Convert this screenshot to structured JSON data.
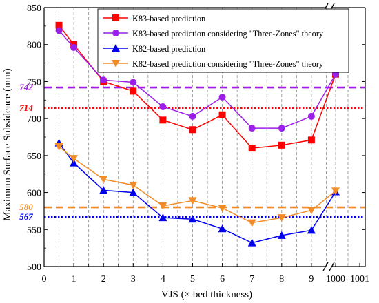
{
  "chart_data": {
    "type": "line",
    "xlabel": "VJS (× bed thickness)",
    "ylabel": "Maximum Surface Subsidence (mm)",
    "ylim": [
      500,
      850
    ],
    "y_ticks": [
      500,
      550,
      600,
      650,
      700,
      750,
      800,
      850
    ],
    "x_ticks": [
      "0",
      "1",
      "2",
      "3",
      "4",
      "5",
      "6",
      "7",
      "8",
      "9",
      "1000",
      "1001"
    ],
    "x_axis_break": "between 9 and 1000",
    "grid": "vertical dashed gridlines",
    "legend_position": "top-right",
    "x": [
      0.5,
      1,
      2,
      3,
      4,
      5,
      6,
      7,
      8,
      9,
      1000
    ],
    "series": [
      {
        "name": "K83-based prediction",
        "color": "#ff0000",
        "marker": "square",
        "values": [
          826,
          800,
          750,
          737,
          698,
          685,
          705,
          660,
          664,
          671,
          760
        ]
      },
      {
        "name": "K83-based prediction considering \"Three-Zones\" theory",
        "color": "#9b1fe8",
        "marker": "circle",
        "values": [
          819,
          796,
          752,
          749,
          716,
          703,
          729,
          687,
          687,
          703,
          760
        ]
      },
      {
        "name": "K82-based prediction",
        "color": "#0000ee",
        "marker": "triangle-up",
        "values": [
          667,
          640,
          603,
          600,
          566,
          564,
          551,
          532,
          542,
          549,
          601
        ]
      },
      {
        "name": "K82-based prediction considering \"Three-Zones\" theory",
        "color": "#f28c28",
        "marker": "triangle-down",
        "values": [
          662,
          646,
          618,
          610,
          582,
          589,
          579,
          559,
          566,
          576,
          602
        ]
      }
    ],
    "reference_lines": [
      {
        "value": 742,
        "label": "742",
        "color": "#9b1fe8",
        "style": "dashed"
      },
      {
        "value": 714,
        "label": "714",
        "color": "#ff0000",
        "style": "dotted"
      },
      {
        "value": 580,
        "label": "580",
        "color": "#f28c28",
        "style": "dashed"
      },
      {
        "value": 567,
        "label": "567",
        "color": "#0000ee",
        "style": "dotted"
      }
    ]
  }
}
